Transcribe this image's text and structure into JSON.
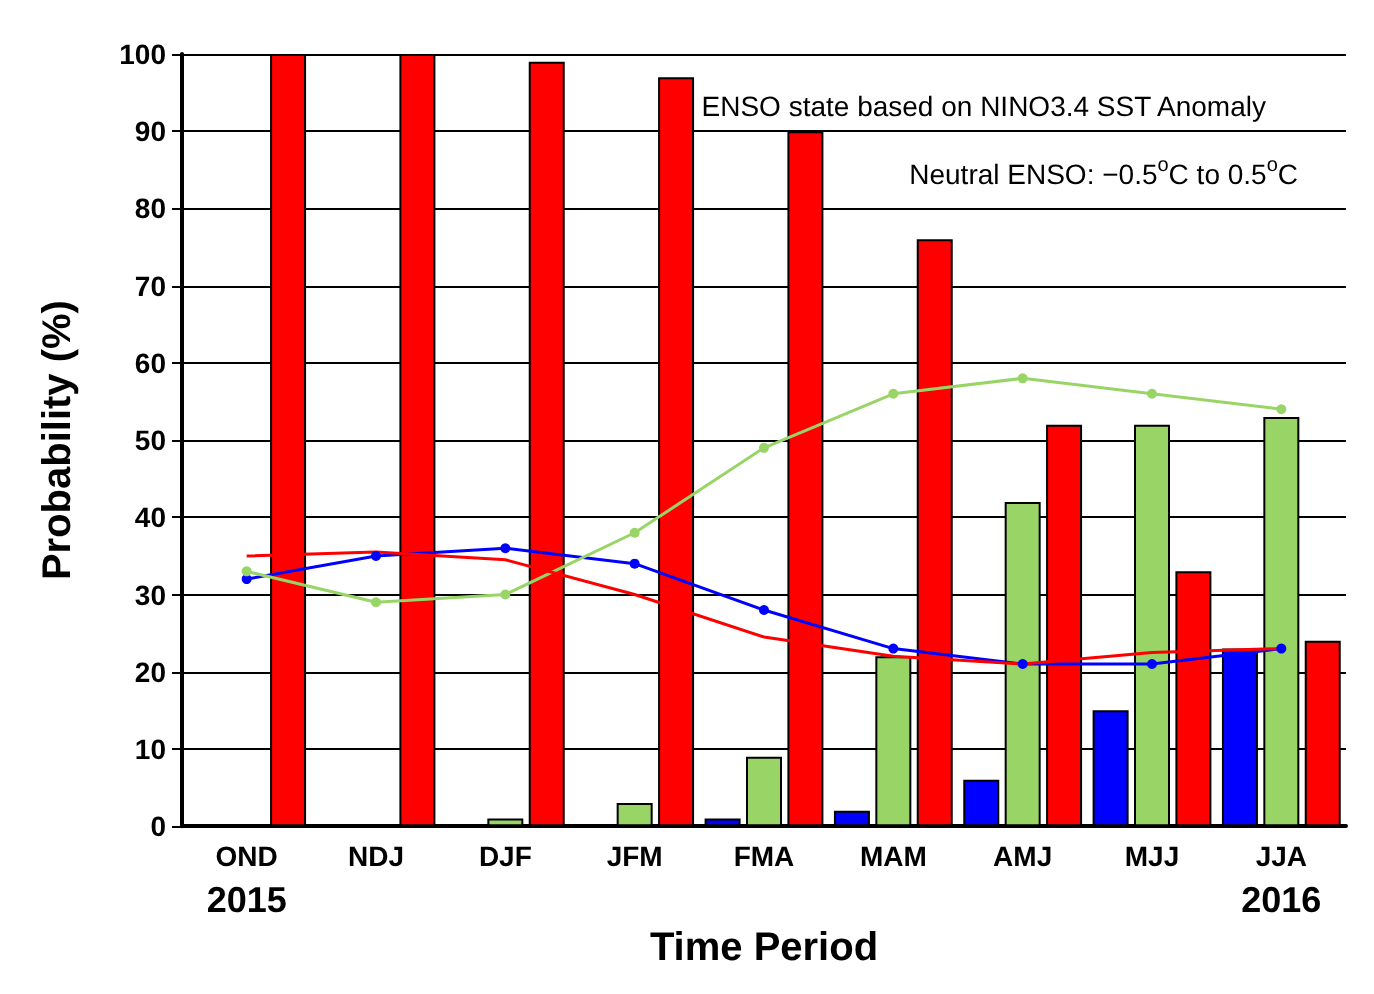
{
  "chart_data": {
    "type": "bar",
    "xlabel": "Time Period",
    "ylabel": "Probability (%)",
    "categories": [
      "OND\n2015",
      "NDJ",
      "DJF",
      "JFM",
      "FMA",
      "MAM",
      "AMJ",
      "MJJ",
      "JJA\n2016"
    ],
    "series": [
      {
        "color": "#0000ff",
        "values": [
          0,
          0,
          0,
          0,
          1,
          2,
          6,
          15,
          23
        ]
      },
      {
        "color": "#99d566",
        "values": [
          0,
          0,
          1,
          3,
          9,
          22,
          42,
          52,
          53
        ]
      },
      {
        "color": "#ff0000",
        "values": [
          100,
          100,
          99,
          97,
          90,
          76,
          52,
          33,
          24
        ]
      },
      {
        "type": "line",
        "marker": "circle",
        "color": "#0000ff",
        "values": [
          32,
          35,
          36,
          34,
          28,
          23,
          21,
          21,
          23
        ]
      },
      {
        "type": "line",
        "marker": "circle",
        "color": "#99d566",
        "values": [
          33,
          29,
          30,
          38,
          49,
          56,
          58,
          56,
          54
        ]
      },
      {
        "type": "line",
        "marker": "none",
        "color": "#ff0000",
        "values": [
          35,
          35.5,
          34.5,
          30,
          24.5,
          22,
          21,
          22.5,
          23
        ]
      }
    ],
    "ylim": [
      0,
      100
    ],
    "yticks": [
      0,
      10,
      20,
      30,
      40,
      50,
      60,
      70,
      80,
      90,
      100
    ],
    "grid": "y",
    "annotations": [
      "ENSO state based on NINO3.4 SST Anomaly",
      "Neutral ENSO: −0.5$^{o}$C to 0.5$^{o}$C"
    ]
  }
}
